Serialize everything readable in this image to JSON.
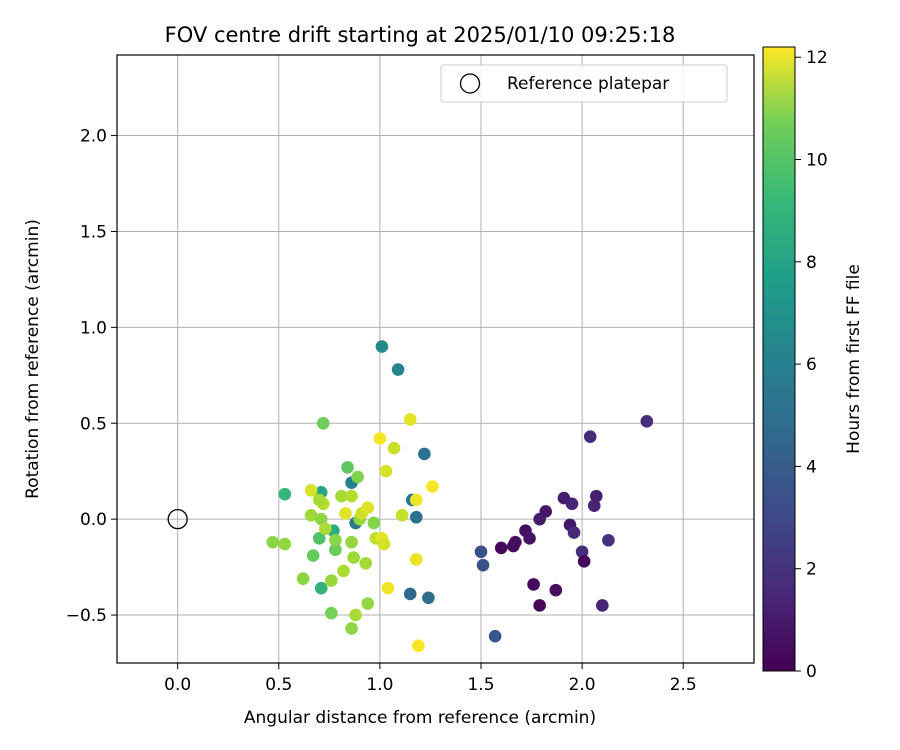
{
  "chart_data": {
    "type": "scatter",
    "title": "FOV centre drift starting at 2025/01/10 09:25:18",
    "xlabel": "Angular distance from reference (arcmin)",
    "ylabel": "Rotation from reference (arcmin)",
    "xlim": [
      -0.3,
      2.85
    ],
    "ylim": [
      -0.75,
      2.42
    ],
    "xticks": [
      0.0,
      0.5,
      1.0,
      1.5,
      2.0,
      2.5
    ],
    "xtick_labels": [
      "0.0",
      "0.5",
      "1.0",
      "1.5",
      "2.0",
      "2.5"
    ],
    "yticks": [
      -0.5,
      0.0,
      0.5,
      1.0,
      1.5,
      2.0
    ],
    "ytick_labels": [
      "−0.5",
      "0.0",
      "0.5",
      "1.0",
      "1.5",
      "2.0"
    ],
    "grid": true,
    "legend": {
      "position": "top-right",
      "entry": "Reference platepar"
    },
    "reference_point": {
      "x": 0.0,
      "y": 0.0
    },
    "colorbar": {
      "label": "Hours from first FF file",
      "colormap": "viridis",
      "range": [
        0,
        12.2
      ],
      "ticks": [
        0,
        2,
        4,
        6,
        8,
        10,
        12
      ],
      "tick_labels": [
        "0",
        "2",
        "4",
        "6",
        "8",
        "10",
        "12"
      ]
    },
    "points": [
      {
        "x": 1.6,
        "y": -0.15,
        "c": 0.2
      },
      {
        "x": 1.66,
        "y": -0.14,
        "c": 0.3
      },
      {
        "x": 1.67,
        "y": -0.12,
        "c": 0.4
      },
      {
        "x": 1.72,
        "y": -0.06,
        "c": 0.5
      },
      {
        "x": 1.74,
        "y": -0.1,
        "c": 0.6
      },
      {
        "x": 1.76,
        "y": -0.34,
        "c": 0.3
      },
      {
        "x": 1.79,
        "y": -0.45,
        "c": 0.2
      },
      {
        "x": 1.79,
        "y": 0.0,
        "c": 0.9
      },
      {
        "x": 1.82,
        "y": 0.04,
        "c": 0.7
      },
      {
        "x": 1.87,
        "y": -0.37,
        "c": 0.5
      },
      {
        "x": 1.91,
        "y": 0.11,
        "c": 1.0
      },
      {
        "x": 1.94,
        "y": -0.03,
        "c": 0.8
      },
      {
        "x": 1.95,
        "y": 0.08,
        "c": 1.2
      },
      {
        "x": 1.96,
        "y": -0.07,
        "c": 1.4
      },
      {
        "x": 2.0,
        "y": -0.17,
        "c": 1.6
      },
      {
        "x": 2.01,
        "y": -0.22,
        "c": 0.3
      },
      {
        "x": 2.04,
        "y": 0.43,
        "c": 1.5
      },
      {
        "x": 2.06,
        "y": 0.07,
        "c": 1.3
      },
      {
        "x": 2.07,
        "y": 0.12,
        "c": 1.1
      },
      {
        "x": 2.1,
        "y": -0.45,
        "c": 1.2
      },
      {
        "x": 2.13,
        "y": -0.11,
        "c": 1.7
      },
      {
        "x": 2.32,
        "y": 0.51,
        "c": 1.6
      },
      {
        "x": 1.5,
        "y": -0.17,
        "c": 3.0
      },
      {
        "x": 1.51,
        "y": -0.24,
        "c": 3.1
      },
      {
        "x": 1.57,
        "y": -0.61,
        "c": 3.3
      },
      {
        "x": 1.15,
        "y": -0.39,
        "c": 4.2
      },
      {
        "x": 1.18,
        "y": 0.01,
        "c": 4.5
      },
      {
        "x": 1.22,
        "y": 0.34,
        "c": 4.6
      },
      {
        "x": 1.24,
        "y": -0.41,
        "c": 4.4
      },
      {
        "x": 1.16,
        "y": 0.1,
        "c": 5.0
      },
      {
        "x": 0.88,
        "y": -0.02,
        "c": 4.9
      },
      {
        "x": 0.86,
        "y": 0.19,
        "c": 5.3
      },
      {
        "x": 1.01,
        "y": 0.9,
        "c": 5.8
      },
      {
        "x": 1.09,
        "y": 0.78,
        "c": 5.5
      },
      {
        "x": 0.53,
        "y": 0.13,
        "c": 8.0
      },
      {
        "x": 0.71,
        "y": 0.14,
        "c": 7.2
      },
      {
        "x": 0.71,
        "y": -0.36,
        "c": 7.9
      },
      {
        "x": 0.77,
        "y": -0.06,
        "c": 7.5
      },
      {
        "x": 0.7,
        "y": -0.1,
        "c": 8.8
      },
      {
        "x": 0.84,
        "y": 0.27,
        "c": 9.1
      },
      {
        "x": 0.72,
        "y": 0.5,
        "c": 9.5
      },
      {
        "x": 0.89,
        "y": 0.22,
        "c": 9.8
      },
      {
        "x": 0.78,
        "y": -0.16,
        "c": 9.4
      },
      {
        "x": 0.76,
        "y": -0.49,
        "c": 9.6
      },
      {
        "x": 0.67,
        "y": -0.19,
        "c": 9.3
      },
      {
        "x": 0.47,
        "y": -0.12,
        "c": 10.0
      },
      {
        "x": 0.53,
        "y": -0.13,
        "c": 10.2
      },
      {
        "x": 0.62,
        "y": -0.31,
        "c": 10.1
      },
      {
        "x": 0.66,
        "y": 0.02,
        "c": 10.4
      },
      {
        "x": 0.71,
        "y": 0.0,
        "c": 10.1
      },
      {
        "x": 0.73,
        "y": -0.05,
        "c": 10.6
      },
      {
        "x": 0.76,
        "y": -0.32,
        "c": 10.3
      },
      {
        "x": 0.78,
        "y": -0.11,
        "c": 10.0
      },
      {
        "x": 0.81,
        "y": 0.12,
        "c": 10.5
      },
      {
        "x": 0.82,
        "y": -0.27,
        "c": 10.7
      },
      {
        "x": 0.86,
        "y": -0.12,
        "c": 10.2
      },
      {
        "x": 0.86,
        "y": -0.57,
        "c": 10.1
      },
      {
        "x": 0.87,
        "y": -0.2,
        "c": 10.4
      },
      {
        "x": 0.88,
        "y": -0.5,
        "c": 10.6
      },
      {
        "x": 0.9,
        "y": 0.0,
        "c": 10.3
      },
      {
        "x": 0.93,
        "y": -0.23,
        "c": 10.5
      },
      {
        "x": 0.94,
        "y": -0.44,
        "c": 10.2
      },
      {
        "x": 0.97,
        "y": -0.02,
        "c": 9.9
      },
      {
        "x": 0.86,
        "y": 0.12,
        "c": 10.8
      },
      {
        "x": 0.72,
        "y": 0.08,
        "c": 10.9
      },
      {
        "x": 0.7,
        "y": 0.1,
        "c": 10.5
      },
      {
        "x": 0.66,
        "y": 0.15,
        "c": 11.5
      },
      {
        "x": 0.83,
        "y": 0.03,
        "c": 11.7
      },
      {
        "x": 0.91,
        "y": 0.03,
        "c": 11.3
      },
      {
        "x": 0.94,
        "y": 0.06,
        "c": 11.6
      },
      {
        "x": 0.98,
        "y": -0.1,
        "c": 11.0
      },
      {
        "x": 1.0,
        "y": 0.42,
        "c": 12.0
      },
      {
        "x": 1.01,
        "y": -0.1,
        "c": 11.8
      },
      {
        "x": 1.02,
        "y": -0.13,
        "c": 11.4
      },
      {
        "x": 1.03,
        "y": 0.25,
        "c": 11.5
      },
      {
        "x": 1.04,
        "y": -0.36,
        "c": 11.9
      },
      {
        "x": 1.07,
        "y": 0.37,
        "c": 11.2
      },
      {
        "x": 1.11,
        "y": 0.02,
        "c": 11.1
      },
      {
        "x": 1.15,
        "y": 0.52,
        "c": 11.7
      },
      {
        "x": 1.18,
        "y": -0.21,
        "c": 11.8
      },
      {
        "x": 1.18,
        "y": 0.1,
        "c": 11.9
      },
      {
        "x": 1.19,
        "y": -0.66,
        "c": 12.1
      },
      {
        "x": 1.26,
        "y": 0.17,
        "c": 12.0
      }
    ]
  }
}
